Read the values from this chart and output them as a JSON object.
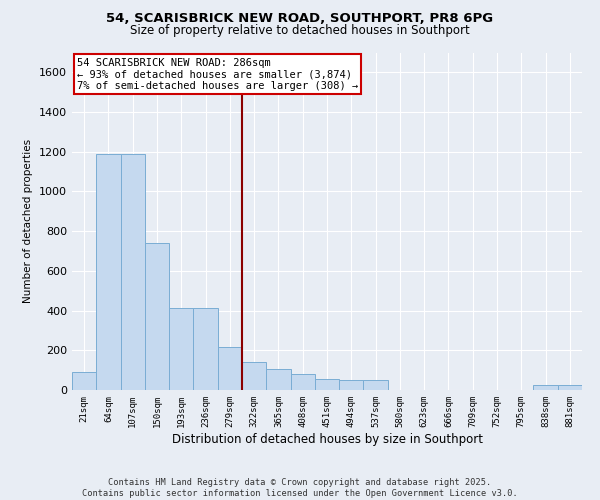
{
  "title_line1": "54, SCARISBRICK NEW ROAD, SOUTHPORT, PR8 6PG",
  "title_line2": "Size of property relative to detached houses in Southport",
  "xlabel": "Distribution of detached houses by size in Southport",
  "ylabel": "Number of detached properties",
  "bar_color": "#c5d9ef",
  "bar_edge_color": "#7aadd4",
  "bg_color": "#e8edf4",
  "grid_color": "#ffffff",
  "vline_color": "#8b0000",
  "vline_x": 6.5,
  "annotation_text": "54 SCARISBRICK NEW ROAD: 286sqm\n← 93% of detached houses are smaller (3,874)\n7% of semi-detached houses are larger (308) →",
  "annotation_box_color": "#ffffff",
  "annotation_box_edge": "#cc0000",
  "categories": [
    "21sqm",
    "64sqm",
    "107sqm",
    "150sqm",
    "193sqm",
    "236sqm",
    "279sqm",
    "322sqm",
    "365sqm",
    "408sqm",
    "451sqm",
    "494sqm",
    "537sqm",
    "580sqm",
    "623sqm",
    "666sqm",
    "709sqm",
    "752sqm",
    "795sqm",
    "838sqm",
    "881sqm"
  ],
  "values": [
    90,
    1190,
    1190,
    740,
    415,
    415,
    215,
    140,
    105,
    80,
    55,
    50,
    50,
    0,
    0,
    0,
    0,
    0,
    0,
    25,
    25
  ],
  "ylim": [
    0,
    1700
  ],
  "yticks": [
    0,
    200,
    400,
    600,
    800,
    1000,
    1200,
    1400,
    1600
  ],
  "footer": "Contains HM Land Registry data © Crown copyright and database right 2025.\nContains public sector information licensed under the Open Government Licence v3.0."
}
